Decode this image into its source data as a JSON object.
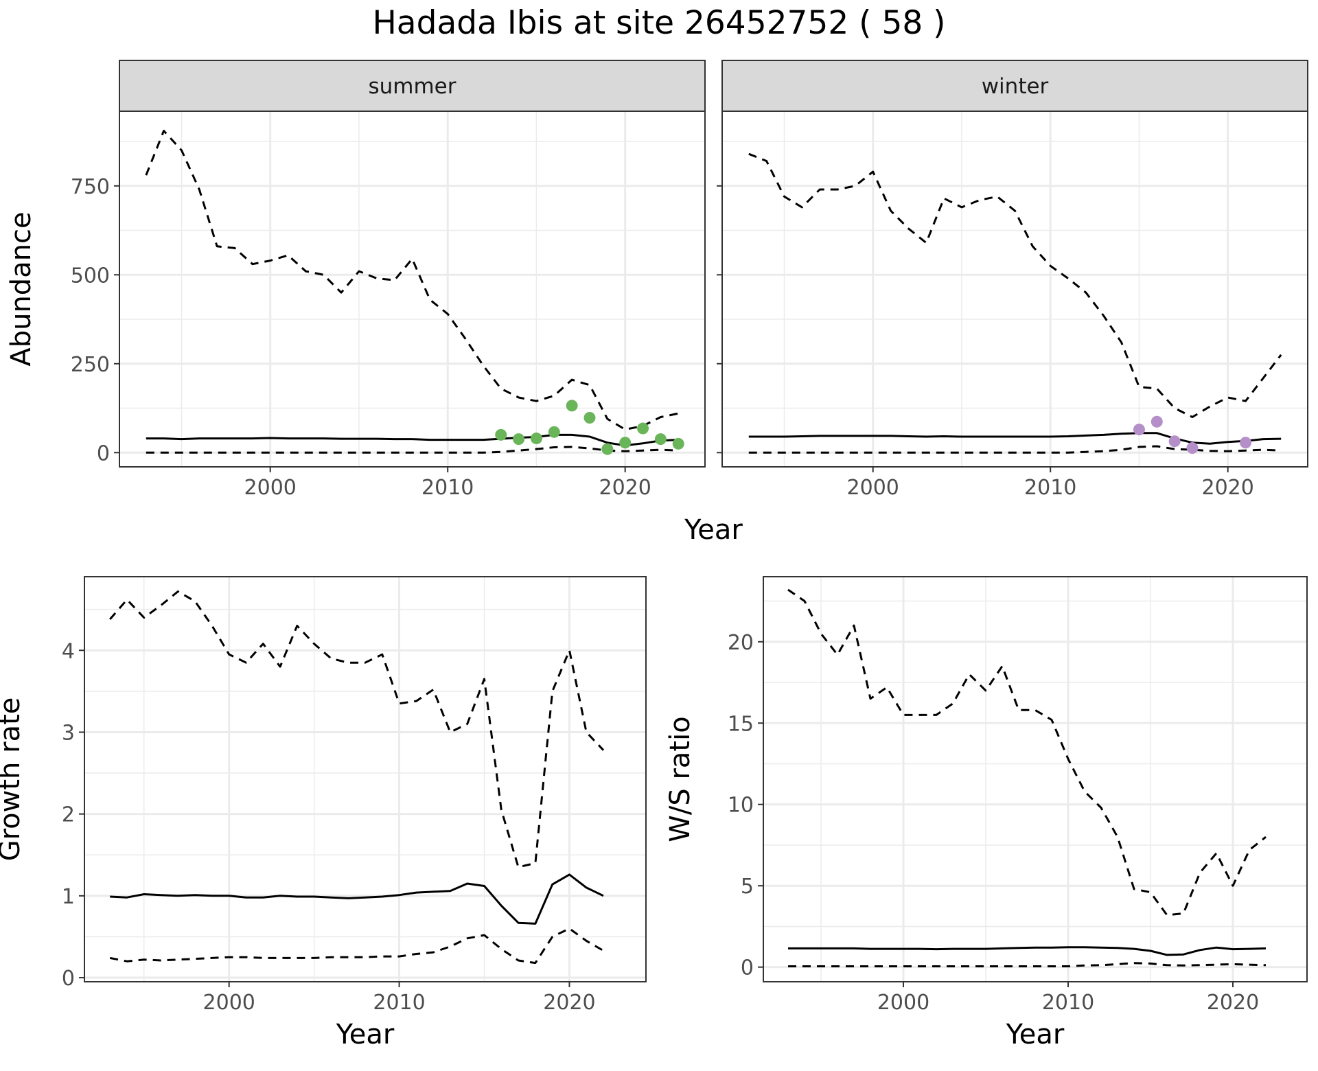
{
  "title": "Hadada Ibis at site 26452752 ( 58 )",
  "colors": {
    "summer_points": "#6ab55a",
    "winter_points": "#b48fc9",
    "line": "#000000",
    "grid": "#ebebeb",
    "strip": "#d9d9d9"
  },
  "chart_data": [
    {
      "type": "line",
      "facet": "summer",
      "xlabel": "Year",
      "ylabel": "Abundance",
      "xlim": [
        1991.5,
        2024.5
      ],
      "ylim": [
        -40,
        960
      ],
      "xticks": [
        2000,
        2010,
        2020
      ],
      "yticks": [
        0,
        250,
        500,
        750
      ],
      "grid": true,
      "x": [
        1993,
        1994,
        1995,
        1996,
        1997,
        1998,
        1999,
        2000,
        2001,
        2002,
        2003,
        2004,
        2005,
        2006,
        2007,
        2008,
        2009,
        2010,
        2011,
        2012,
        2013,
        2014,
        2015,
        2016,
        2017,
        2018,
        2019,
        2020,
        2021,
        2022,
        2023
      ],
      "series": [
        {
          "style": "dashed",
          "values": [
            780,
            905,
            850,
            740,
            580,
            575,
            530,
            540,
            555,
            510,
            500,
            450,
            510,
            490,
            485,
            545,
            430,
            390,
            320,
            245,
            180,
            155,
            145,
            160,
            205,
            190,
            95,
            65,
            75,
            100,
            110
          ]
        },
        {
          "style": "solid",
          "values": [
            40,
            40,
            38,
            40,
            40,
            40,
            40,
            41,
            40,
            40,
            40,
            39,
            39,
            39,
            38,
            38,
            36,
            36,
            36,
            36,
            39,
            42,
            44,
            50,
            50,
            45,
            28,
            20,
            26,
            34,
            36
          ]
        },
        {
          "style": "dashed",
          "values": [
            0,
            0,
            0,
            0,
            0,
            0,
            0,
            0,
            0,
            0,
            0,
            0,
            0,
            0,
            0,
            0,
            0,
            0,
            0,
            0,
            2,
            6,
            10,
            15,
            16,
            12,
            6,
            4,
            6,
            8,
            6
          ]
        }
      ],
      "points": {
        "x": [
          2013,
          2014,
          2015,
          2016,
          2017,
          2018,
          2019,
          2020,
          2021,
          2022,
          2023
        ],
        "y": [
          50,
          38,
          40,
          58,
          132,
          98,
          10,
          28,
          68,
          38,
          25
        ]
      }
    },
    {
      "type": "line",
      "facet": "winter",
      "xlabel": "Year",
      "ylabel": "Abundance",
      "xlim": [
        1991.5,
        2024.5
      ],
      "ylim": [
        -40,
        960
      ],
      "xticks": [
        2000,
        2010,
        2020
      ],
      "yticks": [
        0,
        250,
        500,
        750
      ],
      "grid": true,
      "x": [
        1993,
        1994,
        1995,
        1996,
        1997,
        1998,
        1999,
        2000,
        2001,
        2002,
        2003,
        2004,
        2005,
        2006,
        2007,
        2008,
        2009,
        2010,
        2011,
        2012,
        2013,
        2014,
        2015,
        2016,
        2017,
        2018,
        2019,
        2020,
        2021,
        2022,
        2023
      ],
      "series": [
        {
          "style": "dashed",
          "values": [
            840,
            820,
            720,
            690,
            740,
            740,
            750,
            790,
            680,
            630,
            590,
            715,
            690,
            710,
            720,
            680,
            580,
            525,
            490,
            450,
            385,
            310,
            185,
            180,
            125,
            100,
            130,
            155,
            145,
            210,
            275
          ]
        },
        {
          "style": "solid",
          "values": [
            45,
            45,
            45,
            46,
            47,
            47,
            47,
            47,
            47,
            46,
            45,
            46,
            45,
            45,
            45,
            45,
            45,
            45,
            46,
            48,
            50,
            53,
            55,
            55,
            40,
            28,
            25,
            30,
            33,
            38,
            39
          ]
        },
        {
          "style": "dashed",
          "values": [
            0,
            0,
            0,
            0,
            0,
            0,
            0,
            0,
            0,
            0,
            0,
            0,
            0,
            0,
            0,
            0,
            0,
            0,
            0,
            2,
            4,
            8,
            16,
            18,
            10,
            8,
            5,
            4,
            6,
            8,
            6
          ]
        }
      ],
      "points": {
        "x": [
          2015,
          2016,
          2017,
          2018,
          2021
        ],
        "y": [
          65,
          87,
          32,
          13,
          28
        ]
      }
    },
    {
      "type": "line",
      "facet": "",
      "xlabel": "Year",
      "ylabel": "Growth rate",
      "xlim": [
        1991.5,
        2024.5
      ],
      "ylim": [
        -0.05,
        4.9
      ],
      "xticks": [
        2000,
        2010,
        2020
      ],
      "yticks": [
        0,
        1,
        2,
        3,
        4
      ],
      "grid": true,
      "x": [
        1993,
        1994,
        1995,
        1996,
        1997,
        1998,
        1999,
        2000,
        2001,
        2002,
        2003,
        2004,
        2005,
        2006,
        2007,
        2008,
        2009,
        2010,
        2011,
        2012,
        2013,
        2014,
        2015,
        2016,
        2017,
        2018,
        2019,
        2020,
        2021,
        2022
      ],
      "series": [
        {
          "style": "dashed",
          "values": [
            4.38,
            4.62,
            4.4,
            4.55,
            4.72,
            4.6,
            4.3,
            3.95,
            3.85,
            4.08,
            3.8,
            4.3,
            4.08,
            3.9,
            3.85,
            3.85,
            3.95,
            3.35,
            3.38,
            3.52,
            3.0,
            3.1,
            3.65,
            2.05,
            1.35,
            1.4,
            3.5,
            4.0,
            3.0,
            2.78
          ]
        },
        {
          "style": "solid",
          "values": [
            0.99,
            0.98,
            1.02,
            1.01,
            1.0,
            1.01,
            1.0,
            1.0,
            0.98,
            0.98,
            1.0,
            0.99,
            0.99,
            0.98,
            0.97,
            0.98,
            0.99,
            1.01,
            1.04,
            1.05,
            1.06,
            1.15,
            1.12,
            0.88,
            0.67,
            0.66,
            1.14,
            1.26,
            1.1,
            1.0
          ]
        },
        {
          "style": "dashed",
          "values": [
            0.24,
            0.2,
            0.22,
            0.21,
            0.22,
            0.23,
            0.24,
            0.25,
            0.25,
            0.24,
            0.24,
            0.24,
            0.24,
            0.25,
            0.25,
            0.25,
            0.26,
            0.26,
            0.29,
            0.31,
            0.38,
            0.48,
            0.52,
            0.35,
            0.21,
            0.18,
            0.5,
            0.6,
            0.45,
            0.33
          ]
        }
      ]
    },
    {
      "type": "line",
      "facet": "",
      "xlabel": "Year",
      "ylabel": "W/S ratio",
      "xlim": [
        1991.5,
        2024.5
      ],
      "ylim": [
        -0.9,
        24.0
      ],
      "xticks": [
        2000,
        2010,
        2020
      ],
      "yticks": [
        0,
        5,
        10,
        15,
        20
      ],
      "grid": true,
      "x": [
        1993,
        1994,
        1995,
        1996,
        1997,
        1998,
        1999,
        2000,
        2001,
        2002,
        2003,
        2004,
        2005,
        2006,
        2007,
        2008,
        2009,
        2010,
        2011,
        2012,
        2013,
        2014,
        2015,
        2016,
        2017,
        2018,
        2019,
        2020,
        2021,
        2022
      ],
      "series": [
        {
          "style": "dashed",
          "values": [
            23.2,
            22.5,
            20.5,
            19.2,
            21.0,
            16.5,
            17.2,
            15.5,
            15.5,
            15.5,
            16.2,
            18.0,
            17.0,
            18.5,
            15.8,
            15.8,
            15.2,
            12.8,
            10.8,
            9.8,
            8.0,
            4.8,
            4.6,
            3.2,
            3.3,
            5.8,
            7.0,
            5.0,
            7.2,
            8.0
          ]
        },
        {
          "style": "solid",
          "values": [
            1.15,
            1.15,
            1.15,
            1.15,
            1.15,
            1.12,
            1.12,
            1.12,
            1.12,
            1.1,
            1.12,
            1.12,
            1.12,
            1.15,
            1.18,
            1.2,
            1.2,
            1.22,
            1.22,
            1.2,
            1.18,
            1.12,
            1.0,
            0.75,
            0.78,
            1.05,
            1.2,
            1.1,
            1.12,
            1.15
          ]
        },
        {
          "style": "dashed",
          "values": [
            0.05,
            0.05,
            0.05,
            0.05,
            0.05,
            0.05,
            0.05,
            0.05,
            0.05,
            0.05,
            0.05,
            0.05,
            0.05,
            0.05,
            0.05,
            0.05,
            0.05,
            0.05,
            0.1,
            0.12,
            0.18,
            0.25,
            0.22,
            0.12,
            0.1,
            0.12,
            0.15,
            0.18,
            0.15,
            0.12
          ]
        }
      ]
    }
  ]
}
